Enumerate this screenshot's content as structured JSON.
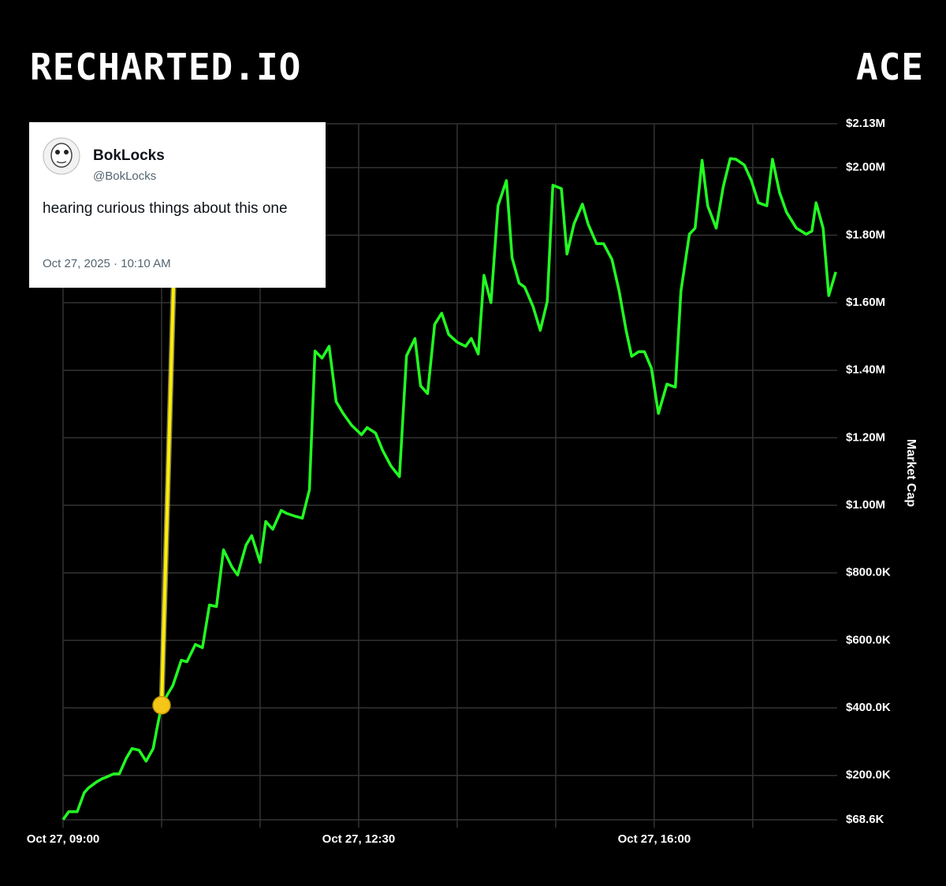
{
  "header": {
    "brand": "RECHARTED.IO",
    "ticker": "ACE"
  },
  "tweet": {
    "name": "BokLocks",
    "handle": "@BokLocks",
    "text": "hearing curious things about this one",
    "timestamp": "Oct 27, 2025 · 10:10 AM"
  },
  "chart_data": {
    "type": "line",
    "y_axis_label": "Market Cap",
    "grid": true,
    "y_axis_side": "right",
    "x": [
      "Oct 27, 09:00",
      "Oct 27, 09:04",
      "Oct 27, 09:08",
      "Oct 27, 09:10",
      "Oct 27, 09:15",
      "Oct 27, 09:18",
      "Oct 27, 09:24",
      "Oct 27, 09:28",
      "Oct 27, 09:31",
      "Oct 27, 09:36",
      "Oct 27, 09:40",
      "Oct 27, 09:45",
      "Oct 27, 09:49",
      "Oct 27, 09:54",
      "Oct 27, 09:59",
      "Oct 27, 10:04",
      "Oct 27, 10:07",
      "Oct 27, 10:10",
      "Oct 27, 10:14",
      "Oct 27, 10:18",
      "Oct 27, 10:24",
      "Oct 27, 10:28",
      "Oct 27, 10:34",
      "Oct 27, 10:39",
      "Oct 27, 10:44",
      "Oct 27, 10:49",
      "Oct 27, 10:54",
      "Oct 27, 11:00",
      "Oct 27, 11:04",
      "Oct 27, 11:10",
      "Oct 27, 11:14",
      "Oct 27, 11:20",
      "Oct 27, 11:24",
      "Oct 27, 11:29",
      "Oct 27, 11:35",
      "Oct 27, 11:39",
      "Oct 27, 11:44",
      "Oct 27, 11:50",
      "Oct 27, 11:55",
      "Oct 27, 11:59",
      "Oct 27, 12:04",
      "Oct 27, 12:09",
      "Oct 27, 12:14",
      "Oct 27, 12:19",
      "Oct 27, 12:25",
      "Oct 27, 12:32",
      "Oct 27, 12:36",
      "Oct 27, 12:42",
      "Oct 27, 12:47",
      "Oct 27, 12:53",
      "Oct 27, 12:59",
      "Oct 27, 13:04",
      "Oct 27, 13:10",
      "Oct 27, 13:14",
      "Oct 27, 13:19",
      "Oct 27, 13:24",
      "Oct 27, 13:29",
      "Oct 27, 13:34",
      "Oct 27, 13:40",
      "Oct 27, 13:46",
      "Oct 27, 13:50",
      "Oct 27, 13:55",
      "Oct 27, 13:59",
      "Oct 27, 14:04",
      "Oct 27, 14:09",
      "Oct 27, 14:15",
      "Oct 27, 14:19",
      "Oct 27, 14:24",
      "Oct 27, 14:28",
      "Oct 27, 14:34",
      "Oct 27, 14:39",
      "Oct 27, 14:44",
      "Oct 27, 14:48",
      "Oct 27, 14:54",
      "Oct 27, 14:58",
      "Oct 27, 15:03",
      "Oct 27, 15:09",
      "Oct 27, 15:13",
      "Oct 27, 15:19",
      "Oct 27, 15:24",
      "Oct 27, 15:30",
      "Oct 27, 15:35",
      "Oct 27, 15:40",
      "Oct 27, 15:44",
      "Oct 27, 15:49",
      "Oct 27, 15:53",
      "Oct 27, 15:58",
      "Oct 27, 16:03",
      "Oct 27, 16:09",
      "Oct 27, 16:15",
      "Oct 27, 16:19",
      "Oct 27, 16:25",
      "Oct 27, 16:29",
      "Oct 27, 16:34",
      "Oct 27, 16:38",
      "Oct 27, 16:44",
      "Oct 27, 16:49",
      "Oct 27, 16:54",
      "Oct 27, 16:58",
      "Oct 27, 17:04",
      "Oct 27, 17:09",
      "Oct 27, 17:14",
      "Oct 27, 17:20",
      "Oct 27, 17:24",
      "Oct 27, 17:29",
      "Oct 27, 17:34",
      "Oct 27, 17:41",
      "Oct 27, 17:48",
      "Oct 27, 17:52",
      "Oct 27, 17:55",
      "Oct 27, 18:00",
      "Oct 27, 18:04",
      "Oct 27, 18:09"
    ],
    "series": [
      {
        "name": "Market Cap",
        "color": "#22ff22",
        "values": [
          69000,
          92500,
          92500,
          92500,
          148600,
          162600,
          181300,
          190700,
          195300,
          204700,
          204700,
          251400,
          279400,
          274800,
          242100,
          279400,
          344900,
          407900,
          438300,
          466400,
          541100,
          536400,
          587800,
          578500,
          704700,
          700000,
          868200,
          816800,
          793400,
          882200,
          910300,
          830800,
          952300,
          929000,
          985000,
          975700,
          968700,
          961700,
          1045800,
          1457000,
          1436000,
          1471000,
          1307000,
          1272000,
          1237000,
          1209000,
          1230000,
          1214000,
          1163000,
          1116000,
          1085000,
          1443000,
          1494000,
          1354000,
          1331000,
          1536000,
          1569000,
          1506000,
          1483000,
          1471000,
          1494000,
          1448000,
          1681000,
          1600000,
          1887000,
          1962000,
          1733000,
          1658000,
          1646000,
          1588000,
          1518000,
          1604000,
          1948000,
          1938000,
          1744000,
          1833000,
          1892000,
          1833000,
          1775000,
          1775000,
          1728000,
          1635000,
          1518000,
          1441000,
          1455000,
          1455000,
          1406000,
          1272000,
          1359000,
          1350000,
          1635000,
          1803000,
          1821000,
          2022000,
          1887000,
          1821000,
          1943000,
          2027000,
          2025000,
          2008000,
          1962000,
          1896000,
          1887000,
          2025000,
          1927000,
          1868000,
          1821000,
          1803000,
          1812000,
          1896000,
          1821000,
          1621000,
          1691000
        ]
      }
    ],
    "xlim": [
      "Oct 27, 09:00",
      "Oct 27, 18:10"
    ],
    "xticks": [
      "Oct 27, 09:00",
      {
        "value": "Oct 27, 10:10",
        "label": null
      },
      {
        "value": "Oct 27, 11:20",
        "label": null
      },
      "Oct 27, 12:30",
      {
        "value": "Oct 27, 13:40",
        "label": null
      },
      {
        "value": "Oct 27, 14:50",
        "label": null
      },
      "Oct 27, 16:00",
      {
        "value": "Oct 27, 17:10",
        "label": null
      }
    ],
    "ylim": [
      68600,
      2130000
    ],
    "yticks": [
      {
        "value": 68600,
        "label": "$68.6K"
      },
      {
        "value": 200000,
        "label": "$200.0K"
      },
      {
        "value": 400000,
        "label": "$400.0K"
      },
      {
        "value": 600000,
        "label": "$600.0K"
      },
      {
        "value": 800000,
        "label": "$800.0K"
      },
      {
        "value": 1000000,
        "label": "$1.00M"
      },
      {
        "value": 1200000,
        "label": "$1.20M"
      },
      {
        "value": 1400000,
        "label": "$1.40M"
      },
      {
        "value": 1600000,
        "label": "$1.60M"
      },
      {
        "value": 1800000,
        "label": "$1.80M"
      },
      {
        "value": 2000000,
        "label": "$2.00M"
      },
      {
        "value": 2130000,
        "label": "$2.13M"
      }
    ]
  }
}
